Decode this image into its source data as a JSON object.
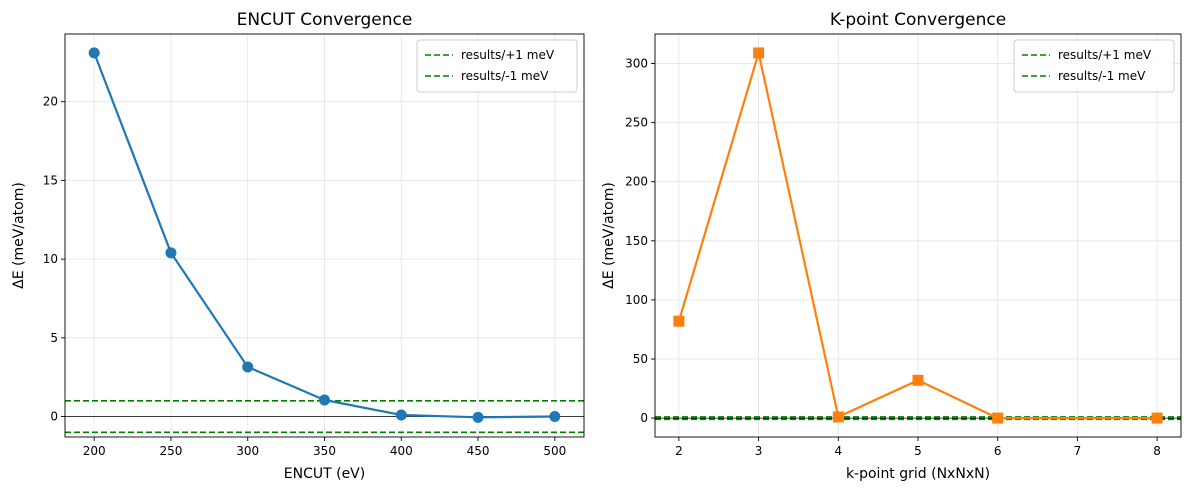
{
  "chart_data": [
    {
      "type": "line",
      "title": "ENCUT Convergence",
      "xlabel": "ENCUT (eV)",
      "ylabel": "ΔE (meV/atom)",
      "xlim": [
        181,
        519
      ],
      "ylim": [
        -1.3,
        24.3
      ],
      "xticks": [
        200,
        250,
        300,
        350,
        400,
        450,
        500
      ],
      "yticks": [
        0,
        5,
        10,
        15,
        20
      ],
      "grid": true,
      "legend_position": "top-right",
      "series": [
        {
          "x": [
            200,
            250,
            300,
            350,
            400,
            450,
            500
          ],
          "values": [
            23.1,
            10.4,
            3.15,
            1.05,
            0.1,
            -0.05,
            0.0
          ],
          "color": "#1f77b4",
          "marker": "circle"
        }
      ],
      "reference_lines": [
        {
          "y": 1,
          "label": "results/+1 meV",
          "color": "#008000",
          "style": "dashed"
        },
        {
          "y": -1,
          "label": "results/-1 meV",
          "color": "#008000",
          "style": "dashed"
        },
        {
          "y": 0,
          "label": "",
          "color": "#000000",
          "style": "solid"
        }
      ]
    },
    {
      "type": "line",
      "title": "K-point Convergence",
      "xlabel": "k-point grid (NxNxN)",
      "ylabel": "ΔE (meV/atom)",
      "xlim": [
        1.7,
        8.3
      ],
      "ylim": [
        -16,
        325
      ],
      "xticks": [
        2,
        3,
        4,
        5,
        6,
        7,
        8
      ],
      "yticks": [
        0,
        50,
        100,
        150,
        200,
        250,
        300
      ],
      "grid": true,
      "legend_position": "top-right",
      "series": [
        {
          "x": [
            2,
            3,
            4,
            5,
            6,
            8
          ],
          "values": [
            82,
            309,
            1,
            32,
            0,
            0
          ],
          "color": "#ff7f0e",
          "marker": "square"
        }
      ],
      "reference_lines": [
        {
          "y": 1,
          "label": "results/+1 meV",
          "color": "#008000",
          "style": "dashed"
        },
        {
          "y": -1,
          "label": "results/-1 meV",
          "color": "#008000",
          "style": "dashed"
        },
        {
          "y": 0,
          "label": "",
          "color": "#000000",
          "style": "solid"
        }
      ]
    }
  ]
}
